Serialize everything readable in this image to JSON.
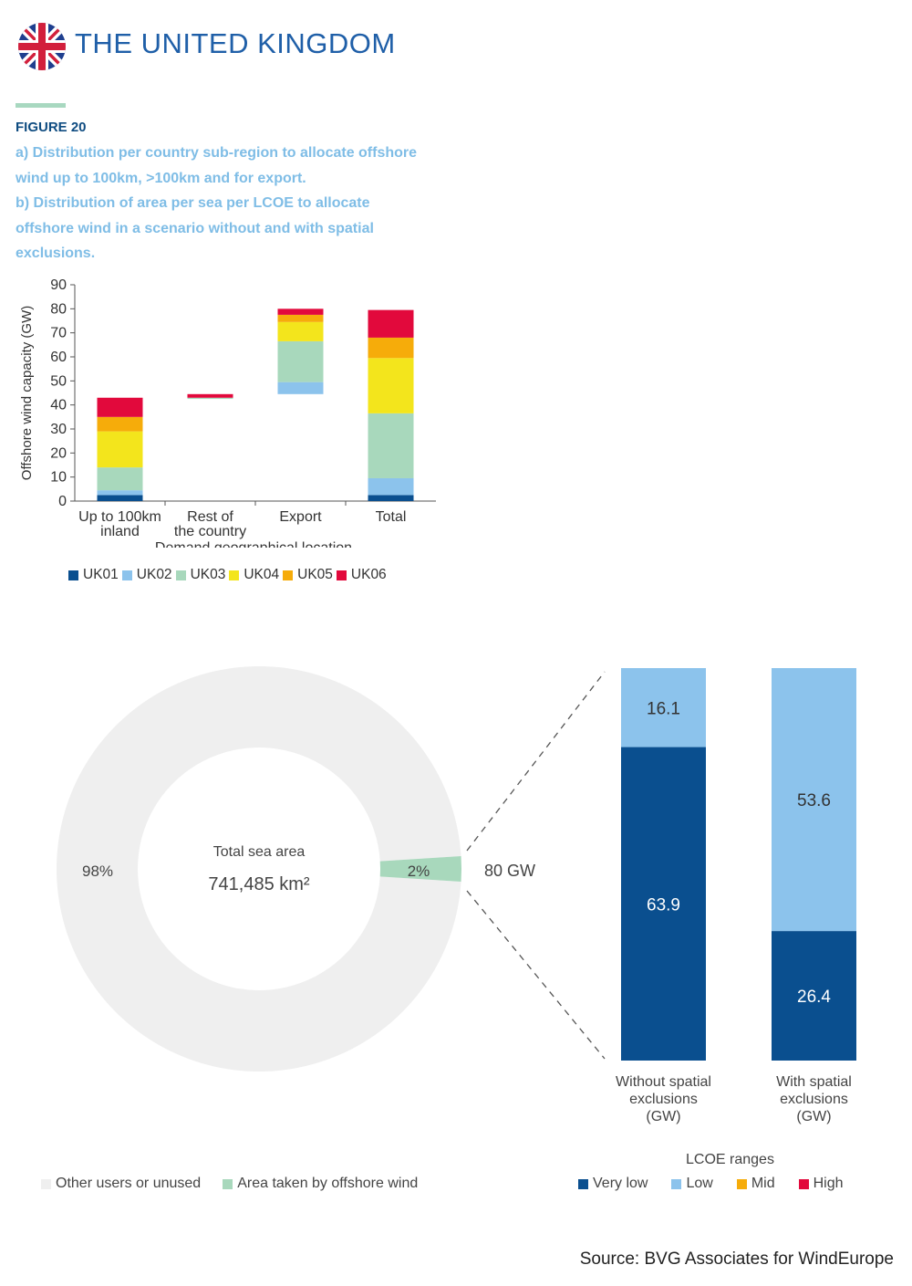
{
  "header": {
    "title": "THE UNITED KINGDOM",
    "flag_icon": "uk-flag-icon"
  },
  "figure": {
    "label": "FIGURE 20",
    "caption_a_lines": [
      "a) Distribution per country sub-region to allocate offshore",
      "wind up to 100km, >100km and for export."
    ],
    "caption_b_lines": [
      "b) Distribution of area per sea per LCOE to allocate",
      "offshore wind in a scenario without and with spatial",
      "exclusions."
    ]
  },
  "colors": {
    "UK01": "#0a4f8f",
    "UK02": "#8cc3ec",
    "UK03": "#a8d8bc",
    "UK04": "#f3e51c",
    "UK05": "#f6ac0a",
    "UK06": "#e2093c",
    "very_low": "#0a4f8f",
    "low": "#8cc3ec",
    "mid": "#f6ac0a",
    "high": "#e2093c",
    "other": "#efefef",
    "offshore": "#a8d8bc"
  },
  "chart_data": [
    {
      "type": "bar",
      "stacked": true,
      "categories": [
        "Up to 100km inland",
        "Rest of the country",
        "Export",
        "Total"
      ],
      "category_label_lines": [
        [
          "Up to 100km",
          "inland"
        ],
        [
          "Rest of",
          "the country"
        ],
        [
          "Export"
        ],
        [
          "Total"
        ]
      ],
      "floating_base": [
        0,
        42.5,
        44.5,
        0
      ],
      "series": [
        {
          "name": "UK01",
          "values": [
            2.5,
            0,
            0,
            2.5
          ]
        },
        {
          "name": "UK02",
          "values": [
            2,
            0,
            5,
            7
          ]
        },
        {
          "name": "UK03",
          "values": [
            9.5,
            0.5,
            17,
            27
          ]
        },
        {
          "name": "UK04",
          "values": [
            15,
            0,
            8,
            23
          ]
        },
        {
          "name": "UK05",
          "values": [
            6,
            0,
            3,
            8.5
          ]
        },
        {
          "name": "UK06",
          "values": [
            8,
            1.5,
            2.5,
            11.5
          ]
        }
      ],
      "ylabel": "Offshore wind capacity (GW)",
      "xlabel": "Demand geographical location",
      "ylim": [
        0,
        90
      ],
      "yticks": [
        0,
        10,
        20,
        30,
        40,
        50,
        60,
        70,
        80,
        90
      ],
      "grid": false,
      "legend_position": "bottom"
    },
    {
      "type": "pie",
      "donut": true,
      "center_label": "Total sea area",
      "center_value": "741,485 km²",
      "slices": [
        {
          "name": "Other users or unused",
          "value": 98,
          "label": "98%"
        },
        {
          "name": "Area taken by offshore wind",
          "value": 2,
          "label": "2%"
        }
      ],
      "callout": "80 GW",
      "legend_position": "bottom-left"
    },
    {
      "type": "bar",
      "stacked": true,
      "categories": [
        "Without spatial exclusions (GW)",
        "With spatial exclusions (GW)"
      ],
      "category_label_lines": [
        [
          "Without spatial",
          "exclusions",
          "(GW)"
        ],
        [
          "With spatial",
          "exclusions",
          "(GW)"
        ]
      ],
      "series": [
        {
          "name": "Very low",
          "values": [
            63.9,
            26.4
          ]
        },
        {
          "name": "Low",
          "values": [
            16.1,
            53.6
          ]
        },
        {
          "name": "Mid",
          "values": [
            0,
            0
          ]
        },
        {
          "name": "High",
          "values": [
            0,
            0
          ]
        }
      ],
      "legend_title": "LCOE ranges",
      "legend_position": "bottom"
    }
  ],
  "source": "Source: BVG Associates for WindEurope"
}
